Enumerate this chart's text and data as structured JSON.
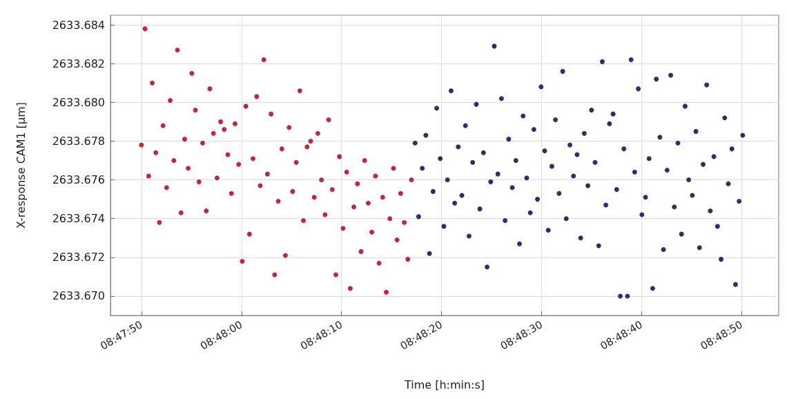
{
  "chart_data": {
    "type": "scatter",
    "xlabel": "Time [h:min:s]",
    "ylabel": "X-response CAM1 [μm]",
    "grid": true,
    "marker": "circle",
    "xlim": [
      8.79636,
      8.81492
    ],
    "xticks": [
      {
        "value": 8.797222,
        "label": "08:47:50"
      },
      {
        "value": 8.8,
        "label": "08:48:00"
      },
      {
        "value": 8.802778,
        "label": "08:48:10"
      },
      {
        "value": 8.805556,
        "label": "08:48:20"
      },
      {
        "value": 8.808333,
        "label": "08:48:30"
      },
      {
        "value": 8.811111,
        "label": "08:48:40"
      },
      {
        "value": 8.813889,
        "label": "08:48:50"
      }
    ],
    "ylim": [
      2633.669,
      2633.6845
    ],
    "yticks": [
      {
        "value": 2633.67,
        "label": "2633.670"
      },
      2633.672,
      2633.674,
      2633.676,
      2633.678,
      {
        "value": 2633.68,
        "label": "2633.680"
      },
      2633.682,
      2633.684
    ],
    "series": [
      {
        "color": "#c0283a",
        "x": [
          8.79722,
          8.79732,
          8.79742,
          8.79752,
          8.79762,
          8.79772,
          8.79782,
          8.79792,
          8.79802,
          8.79812,
          8.79822,
          8.79832,
          8.79842,
          8.79852,
          8.79862,
          8.79872,
          8.79882,
          8.79892,
          8.79902,
          8.79912,
          8.79922,
          8.79932,
          8.79942,
          8.79952,
          8.79962,
          8.79972,
          8.79982,
          8.79992,
          8.80002,
          8.80012,
          8.80022,
          8.80032,
          8.80042,
          8.80052,
          8.80062,
          8.80072,
          8.80082,
          8.80092,
          8.80102,
          8.80112,
          8.80122,
          8.80132,
          8.80142,
          8.80152,
          8.80162,
          8.80172,
          8.80182,
          8.80192,
          8.80202,
          8.80212,
          8.80222,
          8.80232,
          8.80242,
          8.80252,
          8.80262,
          8.80272,
          8.80282,
          8.80292,
          8.80302,
          8.80312,
          8.80322,
          8.80332,
          8.80342,
          8.80352,
          8.80362,
          8.80372,
          8.80382,
          8.80392,
          8.80402,
          8.80412,
          8.80422,
          8.80432,
          8.80442,
          8.80452,
          8.80462,
          8.80472
        ],
        "values": [
          2633.6778,
          2633.6838,
          2633.6762,
          2633.681,
          2633.6774,
          2633.6738,
          2633.6788,
          2633.6756,
          2633.6801,
          2633.677,
          2633.6827,
          2633.6743,
          2633.6781,
          2633.6766,
          2633.6815,
          2633.6796,
          2633.6759,
          2633.6779,
          2633.6744,
          2633.6807,
          2633.6784,
          2633.6761,
          2633.679,
          2633.6786,
          2633.6773,
          2633.6753,
          2633.6789,
          2633.6768,
          2633.6718,
          2633.6798,
          2633.6732,
          2633.6771,
          2633.6803,
          2633.6757,
          2633.6822,
          2633.6763,
          2633.6794,
          2633.6711,
          2633.6749,
          2633.6776,
          2633.6721,
          2633.6787,
          2633.6754,
          2633.6769,
          2633.6806,
          2633.6739,
          2633.6777,
          2633.678,
          2633.6751,
          2633.6784,
          2633.676,
          2633.6742,
          2633.6791,
          2633.6755,
          2633.6711,
          2633.6772,
          2633.6735,
          2633.6764,
          2633.6704,
          2633.6746,
          2633.6758,
          2633.6723,
          2633.677,
          2633.6748,
          2633.6733,
          2633.6762,
          2633.6717,
          2633.6751,
          2633.6702,
          2633.674,
          2633.6766,
          2633.6729,
          2633.6753,
          2633.6738,
          2633.6719,
          2633.676
        ]
      },
      {
        "color": "#2b2f6b",
        "x": [
          8.80482,
          8.80492,
          8.80502,
          8.80512,
          8.80522,
          8.80532,
          8.80542,
          8.80552,
          8.80562,
          8.80572,
          8.80582,
          8.80592,
          8.80602,
          8.80612,
          8.80622,
          8.80632,
          8.80642,
          8.80652,
          8.80662,
          8.80672,
          8.80682,
          8.80692,
          8.80702,
          8.80712,
          8.80722,
          8.80732,
          8.80742,
          8.80752,
          8.80762,
          8.80772,
          8.80782,
          8.80792,
          8.80802,
          8.80812,
          8.80822,
          8.80832,
          8.80842,
          8.80852,
          8.80862,
          8.80872,
          8.80882,
          8.80892,
          8.80902,
          8.80912,
          8.80922,
          8.80932,
          8.80942,
          8.80952,
          8.80962,
          8.80972,
          8.80982,
          8.80992,
          8.81002,
          8.81012,
          8.81022,
          8.81032,
          8.81042,
          8.81052,
          8.81062,
          8.81072,
          8.81082,
          8.81092,
          8.81102,
          8.81112,
          8.81122,
          8.81132,
          8.81142,
          8.81152,
          8.81162,
          8.81172,
          8.81182,
          8.81192,
          8.81202,
          8.81212,
          8.81222,
          8.81232,
          8.81242,
          8.81252,
          8.81262,
          8.81272,
          8.81282,
          8.81292,
          8.81302,
          8.81312,
          8.81322,
          8.81332,
          8.81342,
          8.81352,
          8.81362,
          8.81372,
          8.81382,
          8.81392
        ],
        "values": [
          2633.6779,
          2633.6741,
          2633.6766,
          2633.6783,
          2633.6722,
          2633.6754,
          2633.6797,
          2633.6771,
          2633.6736,
          2633.676,
          2633.6806,
          2633.6748,
          2633.6777,
          2633.6752,
          2633.6788,
          2633.6731,
          2633.6769,
          2633.6799,
          2633.6745,
          2633.6774,
          2633.6715,
          2633.6759,
          2633.6829,
          2633.6763,
          2633.6802,
          2633.6739,
          2633.6781,
          2633.6756,
          2633.677,
          2633.6727,
          2633.6793,
          2633.6761,
          2633.6743,
          2633.6786,
          2633.675,
          2633.6808,
          2633.6775,
          2633.6734,
          2633.6767,
          2633.6791,
          2633.6753,
          2633.6816,
          2633.674,
          2633.6778,
          2633.6762,
          2633.6773,
          2633.673,
          2633.6784,
          2633.6757,
          2633.6796,
          2633.6769,
          2633.6726,
          2633.6821,
          2633.6747,
          2633.6789,
          2633.6794,
          2633.6755,
          2633.67,
          2633.6776,
          2633.67,
          2633.6822,
          2633.6764,
          2633.6807,
          2633.6742,
          2633.6751,
          2633.6771,
          2633.6704,
          2633.6812,
          2633.6782,
          2633.6724,
          2633.6765,
          2633.6814,
          2633.6746,
          2633.6779,
          2633.6732,
          2633.6798,
          2633.676,
          2633.6752,
          2633.6785,
          2633.6725,
          2633.6768,
          2633.6809,
          2633.6744,
          2633.6772,
          2633.6736,
          2633.6719,
          2633.6792,
          2633.6758,
          2633.6776,
          2633.6706,
          2633.6749,
          2633.6783
        ]
      }
    ]
  }
}
